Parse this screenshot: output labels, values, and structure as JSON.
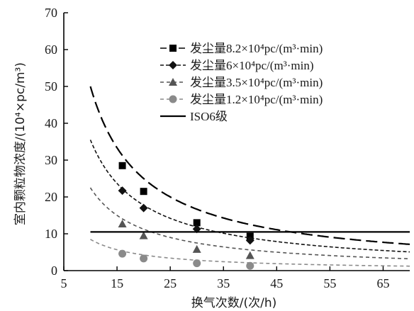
{
  "chart_data": {
    "type": "line",
    "xlabel": "换气次数/(次/h)",
    "ylabel": "室内颗粒物浓度/(10⁴×pc/m³)",
    "xlim": [
      5,
      70
    ],
    "ylim": [
      0,
      70
    ],
    "xticks": [
      5,
      15,
      25,
      35,
      45,
      55,
      65
    ],
    "yticks": [
      0,
      10,
      20,
      30,
      40,
      50,
      60,
      70
    ],
    "grid": false,
    "legend_position": "top-right",
    "series": [
      {
        "name": "发尘量8.2×10⁴pc/(m³·min)",
        "color": "#000000",
        "line_style": "long-dash",
        "marker": "square",
        "markers": [
          [
            16,
            28.5
          ],
          [
            20,
            21.5
          ],
          [
            30,
            13
          ],
          [
            40,
            9.3
          ]
        ],
        "curve_k": 500
      },
      {
        "name": "发尘量6×10⁴pc/(m³·min)",
        "color": "#111111",
        "line_style": "short-dash",
        "marker": "diamond",
        "markers": [
          [
            16,
            21.7
          ],
          [
            20,
            17
          ],
          [
            30,
            11.3
          ],
          [
            40,
            8.2
          ]
        ],
        "curve_k": 355
      },
      {
        "name": "发尘量3.5×10⁴pc/(m³·min)",
        "color": "#555555",
        "line_style": "dash",
        "marker": "triangle",
        "markers": [
          [
            16,
            12.7
          ],
          [
            20,
            9.5
          ],
          [
            30,
            5.8
          ],
          [
            40,
            4.1
          ]
        ],
        "curve_k": 225
      },
      {
        "name": "发尘量1.2×10⁴pc/(m³·min)",
        "color": "#8a8a8a",
        "line_style": "dash",
        "marker": "circle",
        "markers": [
          [
            16,
            4.6
          ],
          [
            20,
            3.3
          ],
          [
            30,
            2.0
          ],
          [
            40,
            1.3
          ]
        ],
        "curve_k": 85
      },
      {
        "name": "ISO6级",
        "color": "#000000",
        "line_style": "solid",
        "marker": "none",
        "constant": 10.5
      }
    ]
  }
}
